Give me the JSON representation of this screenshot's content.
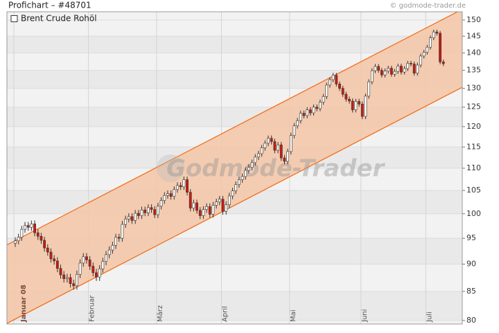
{
  "chart_data": {
    "type": "candlestick",
    "title": "Profichart – #48701",
    "source": "© godmode-trader.de",
    "watermark": "Godmode-Trader",
    "legend": "top-left",
    "log": true,
    "grid": true,
    "ylim": [
      79.4,
      152.6
    ],
    "yticks": [
      80,
      85,
      90,
      95,
      100,
      105,
      110,
      115,
      120,
      125,
      130,
      135,
      140,
      145,
      150
    ],
    "channel": {
      "color": "#f07020",
      "fill": "#f4c6a6",
      "upper": [
        93.7,
        153.4
      ],
      "lower": [
        79.5,
        130.3
      ]
    },
    "categories": [
      "Januar 08",
      null,
      null,
      null,
      null,
      null,
      null,
      null,
      null,
      null,
      null,
      null,
      null,
      null,
      null,
      null,
      null,
      null,
      null,
      null,
      null,
      null,
      null,
      "Februar",
      null,
      null,
      null,
      null,
      null,
      null,
      null,
      null,
      null,
      null,
      null,
      null,
      null,
      null,
      null,
      null,
      null,
      null,
      null,
      null,
      "März",
      null,
      null,
      null,
      null,
      null,
      null,
      null,
      null,
      null,
      null,
      null,
      null,
      null,
      null,
      null,
      null,
      null,
      null,
      null,
      "April",
      null,
      null,
      null,
      null,
      null,
      null,
      null,
      null,
      null,
      null,
      null,
      null,
      null,
      null,
      null,
      null,
      null,
      null,
      null,
      null,
      "Mai",
      null,
      null,
      null,
      null,
      null,
      null,
      null,
      null,
      null,
      null,
      null,
      null,
      null,
      null,
      null,
      null,
      null,
      null,
      null,
      null,
      null,
      "Juni",
      null,
      null,
      null,
      null,
      null,
      null,
      null,
      null,
      null,
      null,
      null,
      null,
      null,
      null,
      null,
      null,
      null,
      null,
      null,
      "Juli",
      null,
      null,
      null,
      null,
      null
    ],
    "series": [
      {
        "name": "Brent Crude Rohöl",
        "up_color": "#ffffff",
        "down_color": "#cc1a10",
        "open": [
          94.0,
          94.5,
          95.2,
          96.8,
          97.6,
          97.2,
          97.9,
          96.1,
          95.4,
          94.6,
          93.1,
          92.3,
          91.0,
          90.6,
          89.2,
          88.0,
          87.3,
          87.5,
          86.4,
          86.0,
          88.1,
          90.2,
          91.4,
          90.8,
          89.6,
          88.4,
          87.6,
          89.1,
          90.5,
          91.8,
          92.7,
          93.6,
          95.2,
          95.0,
          97.8,
          98.9,
          99.4,
          98.6,
          100.1,
          99.6,
          100.8,
          100.2,
          101.3,
          100.9,
          99.8,
          101.6,
          102.8,
          103.9,
          104.3,
          103.7,
          105.2,
          106.1,
          105.8,
          107.4,
          104.6,
          101.2,
          102.3,
          100.7,
          99.6,
          100.9,
          101.5,
          99.9,
          101.8,
          102.5,
          103.1,
          100.5,
          101.9,
          103.8,
          104.9,
          106.3,
          107.4,
          108.1,
          109.5,
          110.2,
          111.3,
          112.6,
          113.4,
          114.8,
          115.9,
          117.1,
          116.3,
          114.2,
          115.5,
          112.4,
          111.6,
          113.9,
          117.8,
          120.2,
          121.5,
          123.4,
          122.8,
          124.3,
          123.5,
          125.0,
          124.6,
          126.3,
          127.8,
          130.9,
          132.4,
          133.6,
          131.2,
          130.0,
          128.4,
          127.1,
          126.6,
          124.3,
          126.5,
          125.8,
          122.6,
          127.9,
          131.8,
          134.9,
          136.1,
          135.0,
          133.7,
          134.8,
          135.6,
          133.9,
          134.7,
          136.2,
          134.5,
          135.5,
          137.0,
          136.8,
          134.2,
          136.5,
          139.1,
          140.2,
          141.7,
          144.5,
          146.3,
          145.9,
          137.4
        ],
        "high": [
          95.2,
          95.9,
          97.5,
          98.3,
          98.3,
          98.6,
          98.6,
          96.8,
          96.1,
          95.3,
          93.8,
          93.0,
          91.7,
          91.3,
          89.9,
          88.7,
          88.2,
          88.2,
          87.1,
          88.8,
          90.9,
          92.1,
          92.1,
          91.5,
          90.3,
          89.1,
          89.8,
          91.2,
          92.5,
          93.4,
          94.3,
          95.9,
          95.9,
          98.5,
          99.6,
          100.1,
          100.1,
          100.8,
          100.8,
          101.5,
          101.5,
          102.0,
          102.0,
          101.6,
          102.3,
          103.5,
          104.6,
          105.0,
          105.0,
          105.9,
          106.8,
          106.8,
          108.1,
          108.1,
          105.3,
          103.0,
          103.0,
          101.4,
          101.6,
          102.2,
          102.2,
          102.5,
          103.2,
          103.8,
          103.8,
          102.6,
          104.5,
          105.6,
          107.0,
          108.1,
          108.8,
          110.2,
          110.9,
          112.0,
          113.3,
          114.1,
          115.5,
          116.6,
          117.8,
          117.8,
          117.0,
          116.2,
          116.2,
          113.1,
          114.6,
          118.5,
          120.9,
          122.2,
          124.1,
          124.1,
          125.0,
          125.0,
          125.7,
          125.7,
          127.0,
          128.5,
          131.6,
          133.1,
          134.3,
          134.3,
          131.9,
          130.7,
          129.1,
          127.8,
          127.3,
          127.2,
          127.2,
          126.5,
          128.6,
          132.5,
          135.6,
          136.8,
          136.8,
          135.7,
          135.5,
          136.3,
          136.3,
          135.4,
          136.9,
          136.9,
          136.2,
          137.7,
          137.7,
          137.5,
          137.2,
          139.8,
          140.9,
          142.4,
          145.2,
          147.0,
          147.0,
          146.6,
          138.1
        ],
        "low": [
          93.3,
          93.8,
          94.5,
          96.1,
          96.5,
          96.5,
          95.4,
          94.7,
          93.9,
          92.4,
          91.6,
          90.3,
          89.9,
          88.5,
          87.3,
          86.6,
          86.6,
          85.7,
          85.3,
          85.3,
          87.4,
          89.5,
          90.1,
          88.9,
          87.7,
          86.9,
          86.9,
          88.4,
          89.8,
          91.1,
          92.0,
          92.9,
          94.3,
          94.3,
          97.1,
          98.2,
          97.9,
          97.9,
          98.9,
          98.9,
          99.5,
          99.5,
          100.2,
          99.1,
          99.1,
          100.9,
          102.1,
          103.2,
          103.0,
          103.0,
          104.5,
          105.1,
          105.1,
          103.9,
          100.5,
          100.5,
          100.0,
          98.9,
          98.9,
          100.2,
          99.2,
          99.2,
          101.1,
          101.8,
          99.8,
          99.8,
          101.2,
          103.1,
          104.2,
          105.6,
          106.7,
          107.4,
          108.8,
          109.5,
          110.6,
          111.9,
          112.7,
          114.1,
          115.2,
          115.6,
          113.5,
          113.5,
          111.7,
          110.9,
          110.9,
          113.2,
          117.1,
          119.5,
          120.8,
          122.1,
          122.1,
          122.8,
          122.8,
          123.9,
          123.9,
          125.6,
          127.1,
          130.2,
          131.7,
          130.5,
          129.3,
          127.7,
          126.4,
          125.9,
          123.6,
          123.6,
          125.1,
          121.9,
          121.9,
          127.2,
          131.1,
          134.2,
          134.3,
          133.0,
          133.0,
          134.1,
          133.2,
          133.2,
          134.0,
          133.8,
          133.8,
          134.8,
          136.1,
          133.5,
          133.5,
          135.8,
          138.4,
          139.5,
          141.0,
          143.8,
          145.2,
          136.7,
          136.2
        ],
        "close": [
          94.5,
          95.2,
          96.8,
          97.6,
          97.2,
          97.9,
          96.1,
          95.4,
          94.6,
          93.1,
          92.3,
          91.0,
          90.6,
          89.2,
          88.0,
          87.3,
          87.5,
          86.4,
          86.0,
          88.1,
          90.2,
          91.4,
          90.8,
          89.6,
          88.4,
          87.6,
          89.1,
          90.5,
          91.8,
          92.7,
          93.6,
          95.2,
          95.0,
          97.8,
          98.9,
          99.4,
          98.6,
          100.1,
          99.6,
          100.8,
          100.2,
          101.3,
          100.9,
          99.8,
          101.6,
          102.8,
          103.9,
          104.3,
          103.7,
          105.2,
          106.1,
          105.8,
          107.4,
          104.6,
          101.2,
          102.3,
          100.7,
          99.6,
          100.9,
          101.5,
          99.9,
          101.8,
          102.5,
          103.1,
          100.5,
          101.9,
          103.8,
          104.9,
          106.3,
          107.4,
          108.1,
          109.5,
          110.2,
          111.3,
          112.6,
          113.4,
          114.8,
          115.9,
          117.1,
          116.3,
          114.2,
          115.5,
          112.4,
          111.6,
          113.9,
          117.8,
          120.2,
          121.5,
          123.4,
          122.8,
          124.3,
          123.5,
          125.0,
          124.6,
          126.3,
          127.8,
          130.9,
          132.4,
          133.6,
          131.2,
          130.0,
          128.4,
          127.1,
          126.6,
          124.3,
          126.5,
          125.8,
          122.6,
          127.9,
          131.8,
          134.9,
          136.1,
          135.0,
          133.7,
          134.8,
          135.6,
          133.9,
          134.7,
          136.2,
          134.5,
          135.5,
          137.0,
          136.8,
          134.2,
          136.5,
          139.1,
          140.2,
          141.7,
          144.5,
          146.3,
          145.9,
          137.4,
          136.9
        ]
      }
    ]
  }
}
